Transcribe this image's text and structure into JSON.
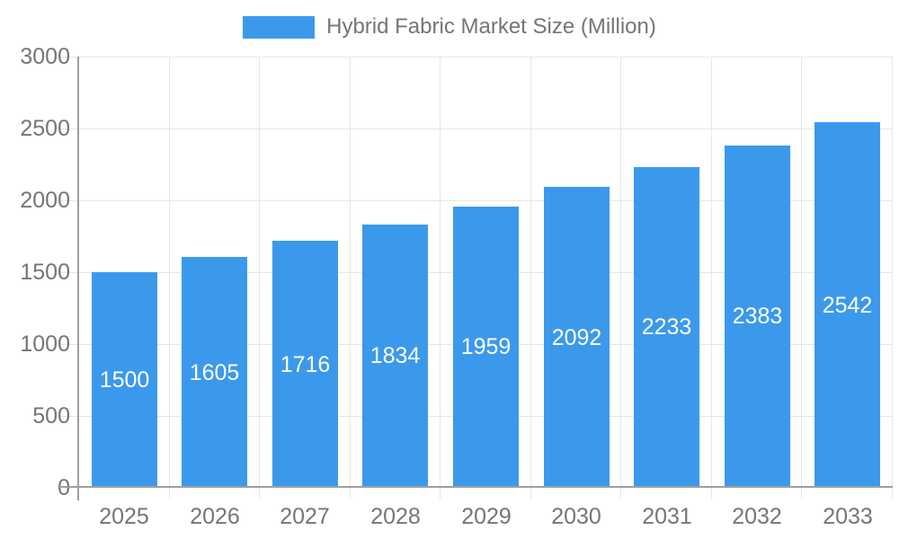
{
  "chart_data": {
    "type": "bar",
    "title": "Hybrid Fabric Market Size (Million)",
    "legend_label": "Hybrid Fabric Market Size (Million)",
    "legend_position": "top",
    "categories": [
      "2025",
      "2026",
      "2027",
      "2028",
      "2029",
      "2030",
      "2031",
      "2032",
      "2033"
    ],
    "series": [
      {
        "name": "Hybrid Fabric Market Size (Million)",
        "values": [
          1500,
          1605,
          1716,
          1834,
          1959,
          2092,
          2233,
          2383,
          2542
        ]
      }
    ],
    "value_labels": "inside-center",
    "xlabel": "",
    "ylabel": "",
    "ylim": [
      0,
      3000
    ],
    "yticks": [
      0,
      500,
      1000,
      1500,
      2000,
      2500,
      3000
    ],
    "grid": true,
    "colors": {
      "bar": "#3B99EC",
      "grid": "#E6E6E6",
      "axis": "#9E9E9E",
      "text": "#757575",
      "value_label": "#FFFFFF",
      "background": "#FFFFFF"
    }
  }
}
